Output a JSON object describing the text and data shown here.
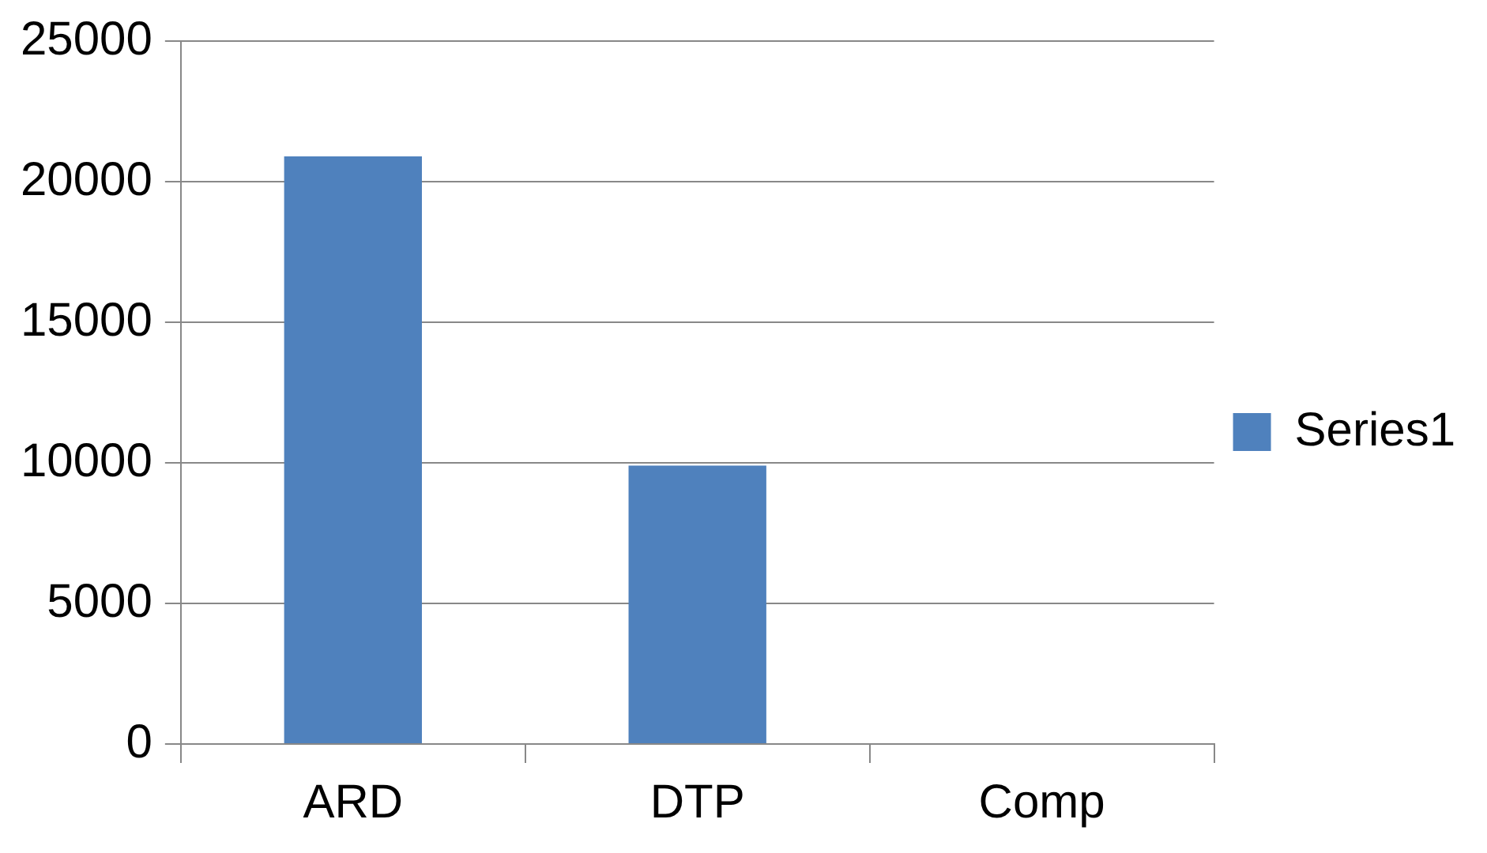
{
  "chart_data": {
    "type": "bar",
    "categories": [
      "ARD",
      "DTP",
      "Comp"
    ],
    "series": [
      {
        "name": "Series1",
        "color": "#4f81bd",
        "values": [
          20900,
          9900,
          0
        ]
      }
    ],
    "ylim": [
      0,
      25000
    ],
    "yticks": [
      0,
      5000,
      10000,
      15000,
      20000,
      25000
    ],
    "grid": "y",
    "legend": "right"
  }
}
